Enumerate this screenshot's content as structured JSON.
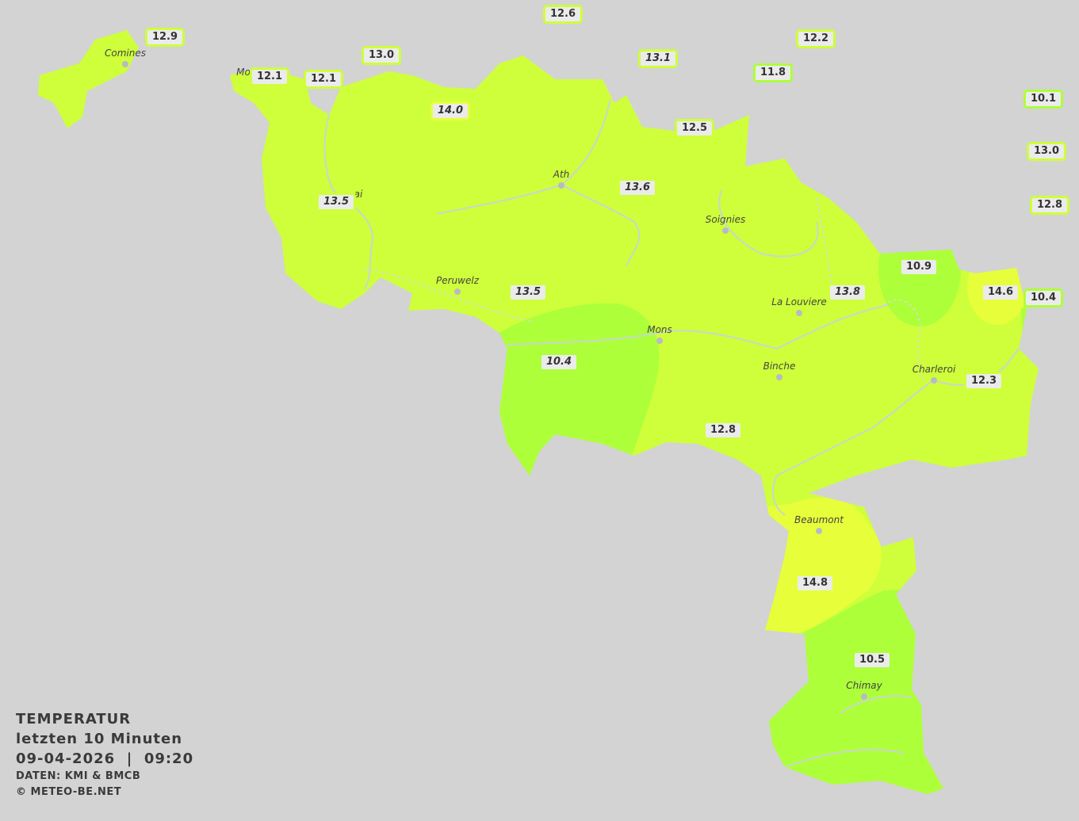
{
  "colors": {
    "background": "#d3d3d3",
    "t12_14": "#ceff3a",
    "t10_12": "#adff3a",
    "t14_16": "#e6ff3a",
    "label_bg": "#ebebeb"
  },
  "legend": {
    "title": "TEMPERATUR",
    "period": "letzten 10 Minuten",
    "date": "09-04-2026",
    "time": "09:20",
    "separator": "|",
    "source": "DATEN: KMI & BMCB",
    "copyright": "© METEO-BE.NET"
  },
  "cities": [
    "Comines",
    "Mo",
    "ai",
    "Ath",
    "Soignies",
    "Peruwelz",
    "La Louviere",
    "Mons",
    "Binche",
    "Charleroi",
    "Beaumont",
    "Chimay"
  ],
  "stations": [
    {
      "value": "12.6",
      "italic": false,
      "color": "#ceff3a"
    },
    {
      "value": "12.9",
      "italic": false,
      "color": "#ceff3a"
    },
    {
      "value": "12.2",
      "italic": false,
      "color": "#ceff3a"
    },
    {
      "value": "13.0",
      "italic": false,
      "color": "#ceff3a"
    },
    {
      "value": "13.1",
      "italic": true,
      "color": "#ceff3a"
    },
    {
      "value": "12.1",
      "italic": false,
      "color": "#ceff3a"
    },
    {
      "value": "12.1",
      "italic": false,
      "color": "#ceff3a"
    },
    {
      "value": "11.8",
      "italic": false,
      "color": "#adff3a"
    },
    {
      "value": "10.1",
      "italic": false,
      "color": "#adff3a"
    },
    {
      "value": "14.0",
      "italic": true,
      "color": "#e6ff3a"
    },
    {
      "value": "12.5",
      "italic": false,
      "color": "#ceff3a"
    },
    {
      "value": "13.0",
      "italic": false,
      "color": "#ceff3a"
    },
    {
      "value": "13.6",
      "italic": true,
      "color": "#ceff3a"
    },
    {
      "value": "13.5",
      "italic": true,
      "color": "#ceff3a"
    },
    {
      "value": "12.8",
      "italic": false,
      "color": "#ceff3a"
    },
    {
      "value": "10.9",
      "italic": false,
      "color": "#adff3a"
    },
    {
      "value": "13.5",
      "italic": true,
      "color": "#ceff3a"
    },
    {
      "value": "13.8",
      "italic": true,
      "color": "#ceff3a"
    },
    {
      "value": "14.6",
      "italic": false,
      "color": "#e6ff3a"
    },
    {
      "value": "10.4",
      "italic": false,
      "color": "#adff3a"
    },
    {
      "value": "10.4",
      "italic": true,
      "color": "#adff3a"
    },
    {
      "value": "12.3",
      "italic": false,
      "color": "#ceff3a"
    },
    {
      "value": "12.8",
      "italic": false,
      "color": "#ceff3a"
    },
    {
      "value": "14.8",
      "italic": false,
      "color": "#e6ff3a"
    },
    {
      "value": "10.5",
      "italic": false,
      "color": "#adff3a"
    }
  ]
}
